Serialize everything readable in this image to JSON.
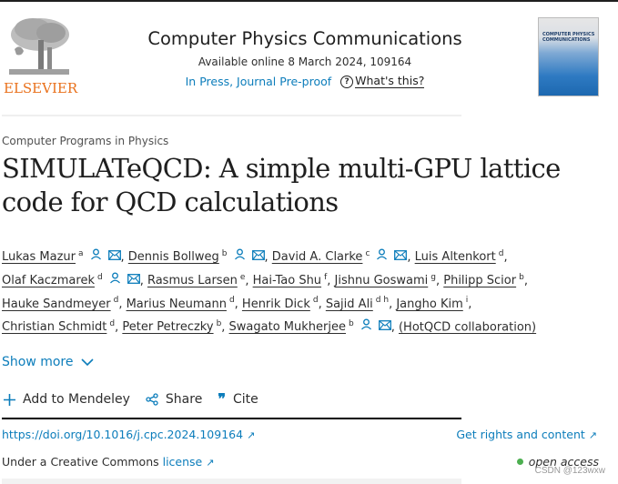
{
  "header": {
    "publisher_logo_text": "ELSEVIER",
    "journal_title": "Computer Physics Communications",
    "availability": "Available online 8 March 2024, 109164",
    "status": "In Press, Journal Pre-proof",
    "help_label": "What's this?",
    "cover_title_line1": "COMPUTER PHYSICS",
    "cover_title_line2": "COMMUNICATIONS"
  },
  "article": {
    "section": "Computer Programs in Physics",
    "title": "SIMULATeQCD: A simple multi-GPU lattice code for QCD calculations",
    "authors": [
      {
        "name": "Lukas Mazur",
        "aff": "a",
        "icons": true
      },
      {
        "name": "Dennis Bollweg",
        "aff": "b",
        "icons": true
      },
      {
        "name": "David A. Clarke",
        "aff": "c",
        "icons": true
      },
      {
        "name": "Luis Altenkort",
        "aff": "d",
        "icons": false
      },
      {
        "name": "Olaf Kaczmarek",
        "aff": "d",
        "icons": true
      },
      {
        "name": "Rasmus Larsen",
        "aff": "e",
        "icons": false
      },
      {
        "name": "Hai-Tao Shu",
        "aff": "f",
        "icons": false
      },
      {
        "name": "Jishnu Goswami",
        "aff": "g",
        "icons": false
      },
      {
        "name": "Philipp Scior",
        "aff": "b",
        "icons": false
      },
      {
        "name": "Hauke Sandmeyer",
        "aff": "d",
        "icons": false
      },
      {
        "name": "Marius Neumann",
        "aff": "d",
        "icons": false
      },
      {
        "name": "Henrik Dick",
        "aff": "d",
        "icons": false
      },
      {
        "name": "Sajid Ali",
        "aff": "d h",
        "icons": false
      },
      {
        "name": "Jangho Kim",
        "aff": "i",
        "icons": false
      },
      {
        "name": "Christian Schmidt",
        "aff": "d",
        "icons": false
      },
      {
        "name": "Peter Petreczky",
        "aff": "b",
        "icons": false
      },
      {
        "name": "Swagato Mukherjee",
        "aff": "b",
        "icons": true
      },
      {
        "name": "(HotQCD collaboration)",
        "aff": "",
        "icons": false
      }
    ],
    "show_more": "Show more"
  },
  "actions": {
    "mendeley": "Add to Mendeley",
    "share": "Share",
    "cite": "Cite"
  },
  "links": {
    "doi": "https://doi.org/10.1016/j.cpc.2024.109164",
    "rights": "Get rights and content",
    "license_prefix": "Under a Creative Commons ",
    "license_link": "license",
    "open_access": "open access"
  },
  "watermark": "CSDN @123wxw",
  "colors": {
    "link_blue": "#0c7dbb",
    "elsevier_orange": "#e9711c",
    "open_access_green": "#4caf50"
  }
}
